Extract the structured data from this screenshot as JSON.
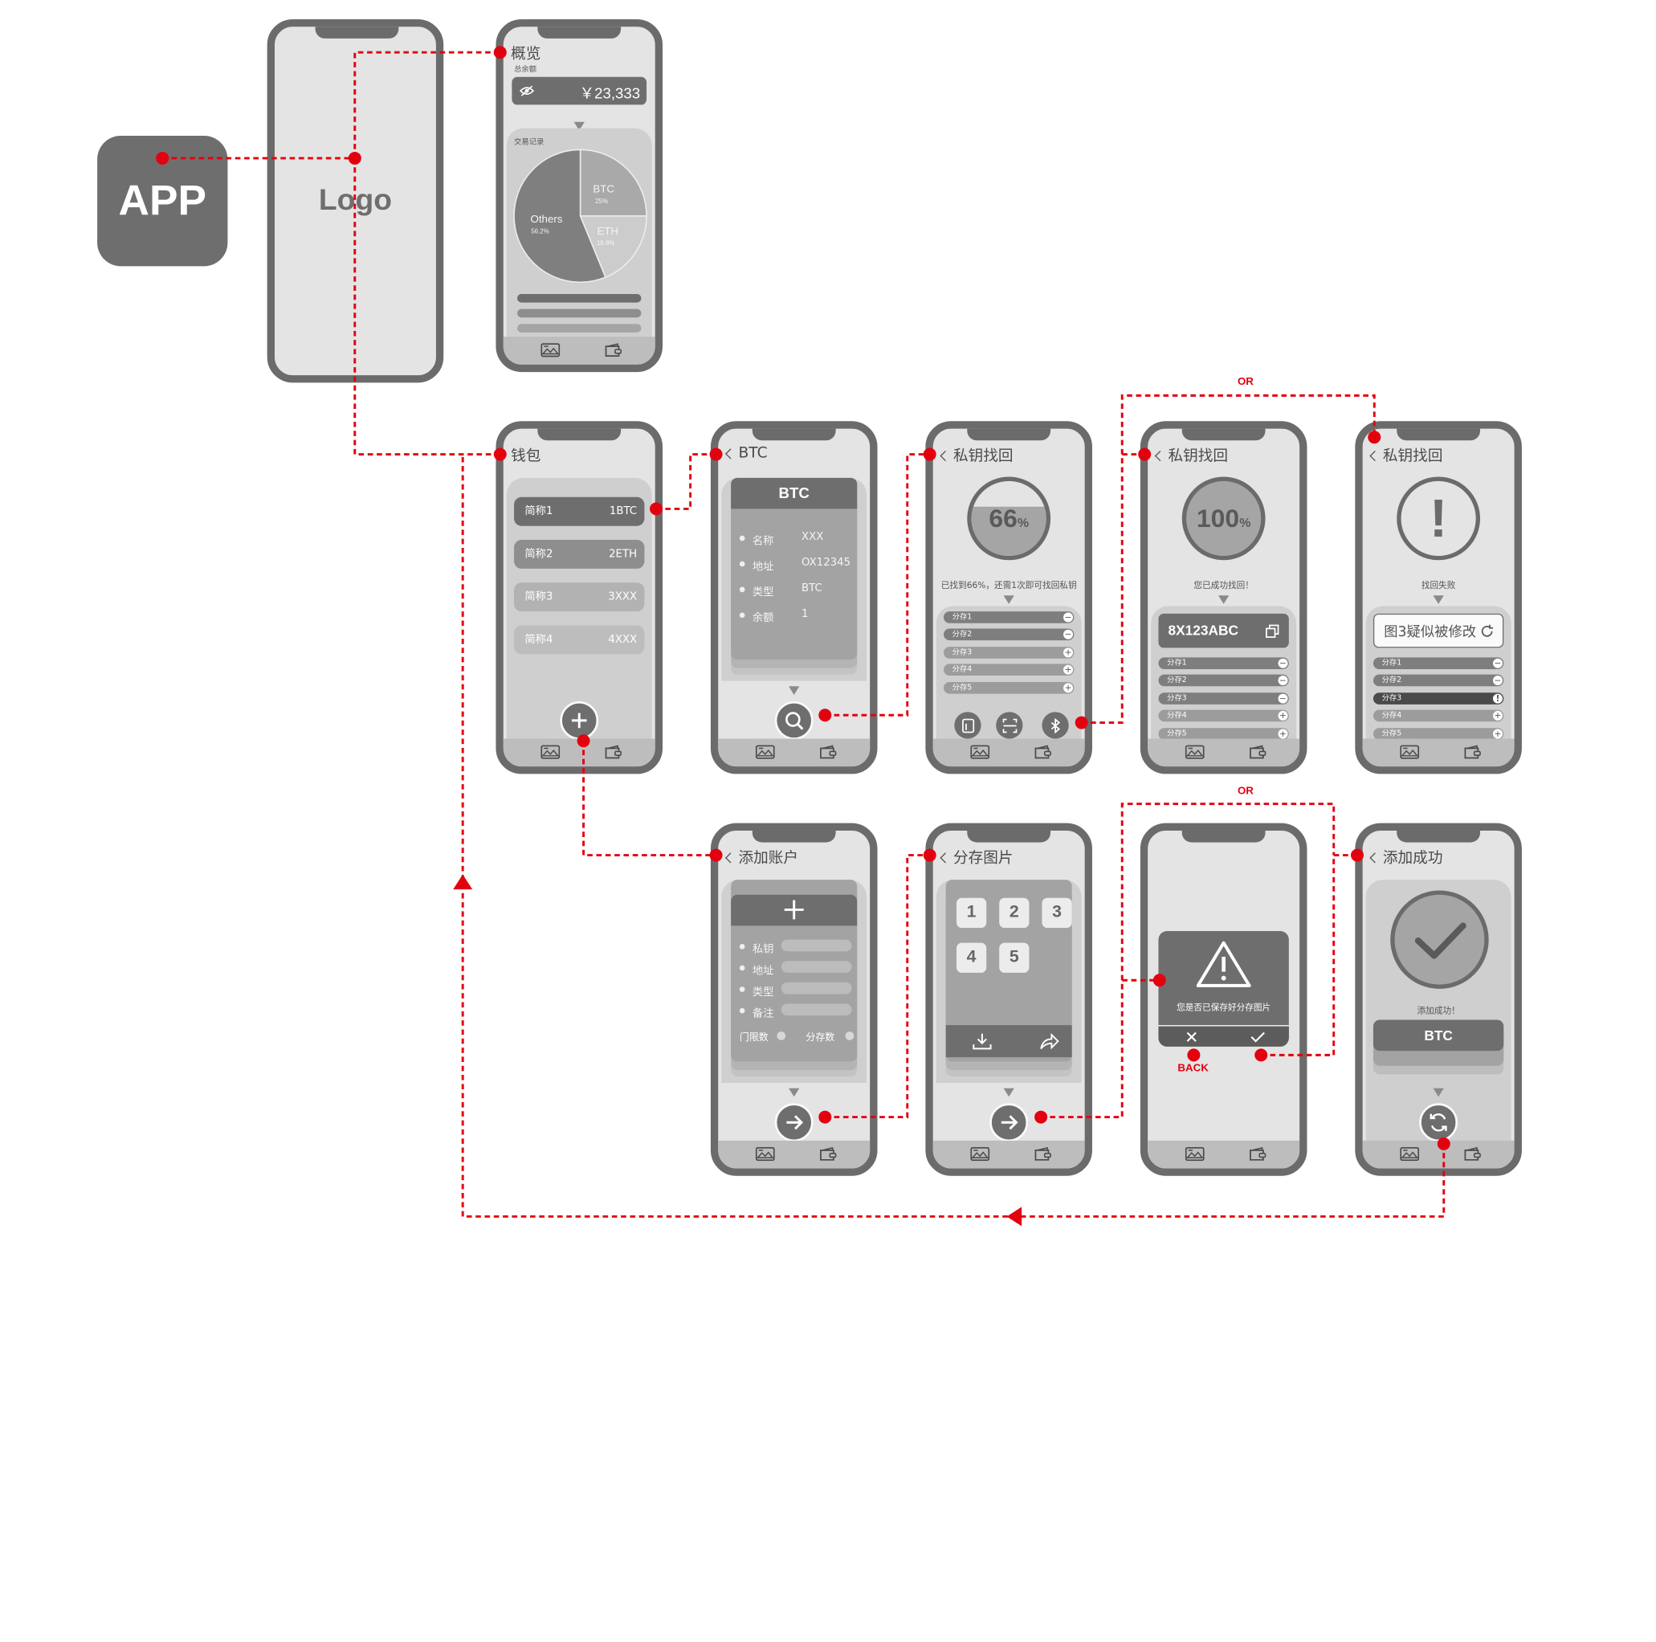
{
  "app_icon": {
    "label": "APP"
  },
  "splash": {
    "logo": "Logo"
  },
  "overview": {
    "title": "概览",
    "balance_label": "总余额",
    "balance": "￥23,333",
    "records_label": "交易记录",
    "pie": {
      "slices": [
        {
          "name": "Others",
          "pct": "56.2%",
          "value": 56.2,
          "color": "#7f7f7f"
        },
        {
          "name": "BTC",
          "pct": "25%",
          "value": 25,
          "color": "#a9a9a9"
        },
        {
          "name": "ETH",
          "pct": "18.8%",
          "value": 18.8,
          "color": "#cccccc"
        }
      ]
    }
  },
  "wallet": {
    "title": "钱包",
    "accounts": [
      {
        "name": "简称1",
        "value": "1BTC"
      },
      {
        "name": "简称2",
        "value": "2ETH"
      },
      {
        "name": "简称3",
        "value": "3XXX"
      },
      {
        "name": "简称4",
        "value": "4XXX"
      }
    ]
  },
  "btc_detail": {
    "title": "BTC",
    "card_title": "BTC",
    "rows": [
      {
        "k": "名称",
        "v": "XXX"
      },
      {
        "k": "地址",
        "v": "OX12345"
      },
      {
        "k": "类型",
        "v": "BTC"
      },
      {
        "k": "余额",
        "v": "1"
      }
    ]
  },
  "recover_progress": {
    "title": "私钥找回",
    "percent": "66",
    "unit": "%",
    "level": 0.66,
    "message": "已找到66%，还需1次即可找回私钥",
    "shares": [
      "分存1",
      "分存2",
      "分存3",
      "分存4",
      "分存5"
    ]
  },
  "recover_success": {
    "title": "私钥找回",
    "percent": "100",
    "unit": "%",
    "message": "您已成功找回！",
    "key": "8X123ABC",
    "shares": [
      "分存1",
      "分存2",
      "分存3",
      "分存4",
      "分存5"
    ]
  },
  "recover_fail": {
    "title": "私钥找回",
    "symbol": "!",
    "message": "找回失败",
    "alert": "图3疑似被修改",
    "shares": [
      "分存1",
      "分存2",
      "分存3",
      "分存4",
      "分存5"
    ]
  },
  "add_account": {
    "title": "添加账户",
    "fields": [
      "私钥",
      "地址",
      "类型",
      "备注"
    ],
    "threshold_label": "门限数",
    "shares_label": "分存数"
  },
  "share_images": {
    "title": "分存图片",
    "keys": [
      "1",
      "2",
      "3",
      "4",
      "5"
    ]
  },
  "confirm_dialog": {
    "message": "您是否已保存好分存图片",
    "back_label": "BACK"
  },
  "add_success": {
    "title": "添加成功",
    "message": "添加成功！",
    "coin": "BTC"
  },
  "flow": {
    "or_labels": [
      "OR",
      "OR"
    ],
    "line_color": "#e3000f"
  }
}
